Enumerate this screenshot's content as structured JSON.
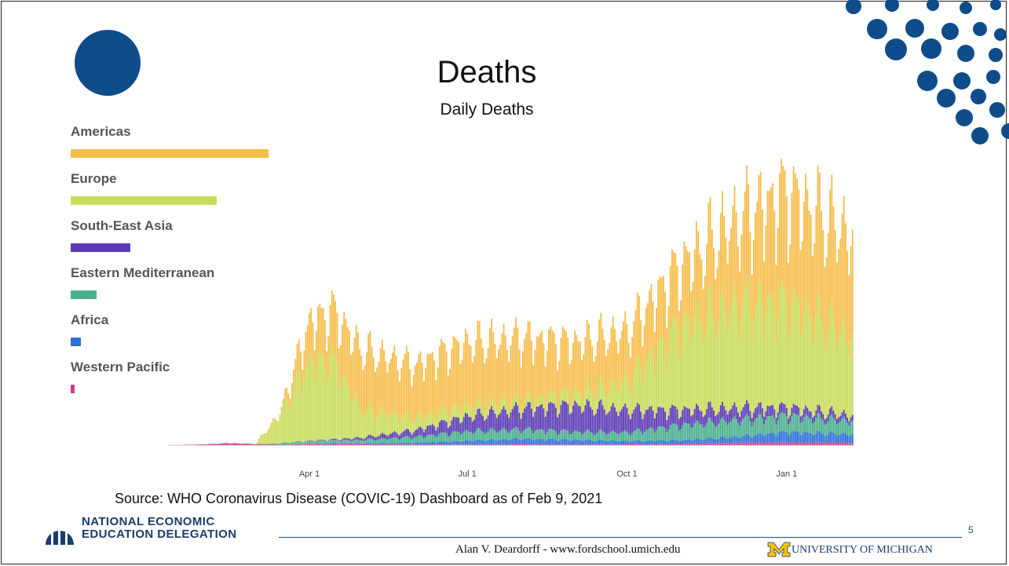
{
  "slide": {
    "title": "Deaths",
    "subtitle": "Daily Deaths",
    "source": "Source:  WHO Coronavirus Disease (COVIC-19) Dashboard as of Feb 9, 2021",
    "org_line1": "NATIONAL ECONOMIC",
    "org_line2": "EDUCATION DELEGATION",
    "footer": "Alan V. Deardorff - www.fordschool.umich.edu",
    "university": "UNIVERSITY OF MICHIGAN",
    "page_number": "5",
    "brand_color": "#0f4c8a"
  },
  "legend": [
    {
      "label": "Americas",
      "color": "#f6bd4b",
      "share": 1.0
    },
    {
      "label": "Europe",
      "color": "#c8dc5a",
      "share": 0.74
    },
    {
      "label": "South-East Asia",
      "color": "#5b3ab5",
      "share": 0.3
    },
    {
      "label": "Eastern Mediterranean",
      "color": "#4aae8c",
      "share": 0.13
    },
    {
      "label": "Africa",
      "color": "#2e6fd6",
      "share": 0.05
    },
    {
      "label": "Western Pacific",
      "color": "#d13b8a",
      "share": 0.02
    }
  ],
  "chart_data": {
    "type": "bar",
    "stacked": true,
    "x_ticks": [
      "Apr 1",
      "Jul 1",
      "Oct 1",
      "Jan 1"
    ],
    "x_range": [
      "2020-01-11",
      "2021-02-09"
    ],
    "ylim": [
      0,
      18000
    ],
    "grid": false,
    "legend_position": "left",
    "series": [
      {
        "name": "Western Pacific",
        "x": [
          "2020-01-15",
          "2020-02-01",
          "2020-02-15",
          "2020-03-01",
          "2020-03-15",
          "2020-04-01",
          "2020-04-15",
          "2020-05-01",
          "2020-06-01",
          "2020-07-01",
          "2020-08-01",
          "2020-09-01",
          "2020-10-01",
          "2020-11-01",
          "2020-12-01",
          "2021-01-01",
          "2021-02-09"
        ],
        "values": [
          5,
          40,
          110,
          50,
          30,
          40,
          60,
          50,
          40,
          30,
          40,
          30,
          40,
          60,
          120,
          140,
          120
        ]
      },
      {
        "name": "Africa",
        "x": [
          "2020-01-15",
          "2020-02-01",
          "2020-02-15",
          "2020-03-01",
          "2020-03-15",
          "2020-04-01",
          "2020-04-15",
          "2020-05-01",
          "2020-06-01",
          "2020-07-01",
          "2020-08-01",
          "2020-09-01",
          "2020-10-01",
          "2020-11-01",
          "2020-12-01",
          "2021-01-01",
          "2021-02-09"
        ],
        "values": [
          0,
          0,
          0,
          0,
          5,
          20,
          40,
          50,
          80,
          200,
          300,
          250,
          180,
          200,
          300,
          550,
          450
        ]
      },
      {
        "name": "Eastern Mediterranean",
        "x": [
          "2020-01-15",
          "2020-02-01",
          "2020-02-15",
          "2020-03-01",
          "2020-03-15",
          "2020-04-01",
          "2020-04-15",
          "2020-05-01",
          "2020-06-01",
          "2020-07-01",
          "2020-08-01",
          "2020-09-01",
          "2020-10-01",
          "2020-11-01",
          "2020-12-01",
          "2021-01-01",
          "2021-02-09"
        ],
        "values": [
          0,
          0,
          0,
          5,
          60,
          150,
          150,
          170,
          320,
          500,
          500,
          430,
          450,
          800,
          900,
          850,
          700
        ]
      },
      {
        "name": "South-East Asia",
        "x": [
          "2020-01-15",
          "2020-02-01",
          "2020-02-15",
          "2020-03-01",
          "2020-03-15",
          "2020-04-01",
          "2020-04-15",
          "2020-05-01",
          "2020-06-01",
          "2020-07-01",
          "2020-08-01",
          "2020-09-01",
          "2020-10-01",
          "2020-11-01",
          "2020-12-01",
          "2021-01-01",
          "2021-02-09"
        ],
        "values": [
          0,
          0,
          0,
          0,
          5,
          20,
          50,
          130,
          350,
          800,
          1100,
          1400,
          1200,
          800,
          650,
          450,
          300
        ]
      },
      {
        "name": "Europe",
        "x": [
          "2020-01-15",
          "2020-02-01",
          "2020-02-15",
          "2020-03-01",
          "2020-03-15",
          "2020-04-01",
          "2020-04-15",
          "2020-05-01",
          "2020-06-01",
          "2020-07-01",
          "2020-08-01",
          "2020-09-01",
          "2020-10-01",
          "2020-11-01",
          "2020-12-01",
          "2021-01-01",
          "2021-02-09"
        ],
        "values": [
          0,
          0,
          0,
          20,
          1500,
          4200,
          4200,
          1500,
          650,
          550,
          450,
          650,
          1500,
          4500,
          5500,
          5600,
          4200
        ]
      },
      {
        "name": "Americas",
        "x": [
          "2020-01-15",
          "2020-02-01",
          "2020-02-15",
          "2020-03-01",
          "2020-03-15",
          "2020-04-01",
          "2020-04-15",
          "2020-05-01",
          "2020-06-01",
          "2020-07-01",
          "2020-08-01",
          "2020-09-01",
          "2020-10-01",
          "2020-11-01",
          "2020-12-01",
          "2021-01-01",
          "2021-02-09"
        ],
        "values": [
          0,
          0,
          0,
          0,
          100,
          2100,
          2600,
          3200,
          2800,
          3400,
          3300,
          2700,
          2700,
          3200,
          4400,
          5800,
          5400
        ]
      }
    ]
  }
}
